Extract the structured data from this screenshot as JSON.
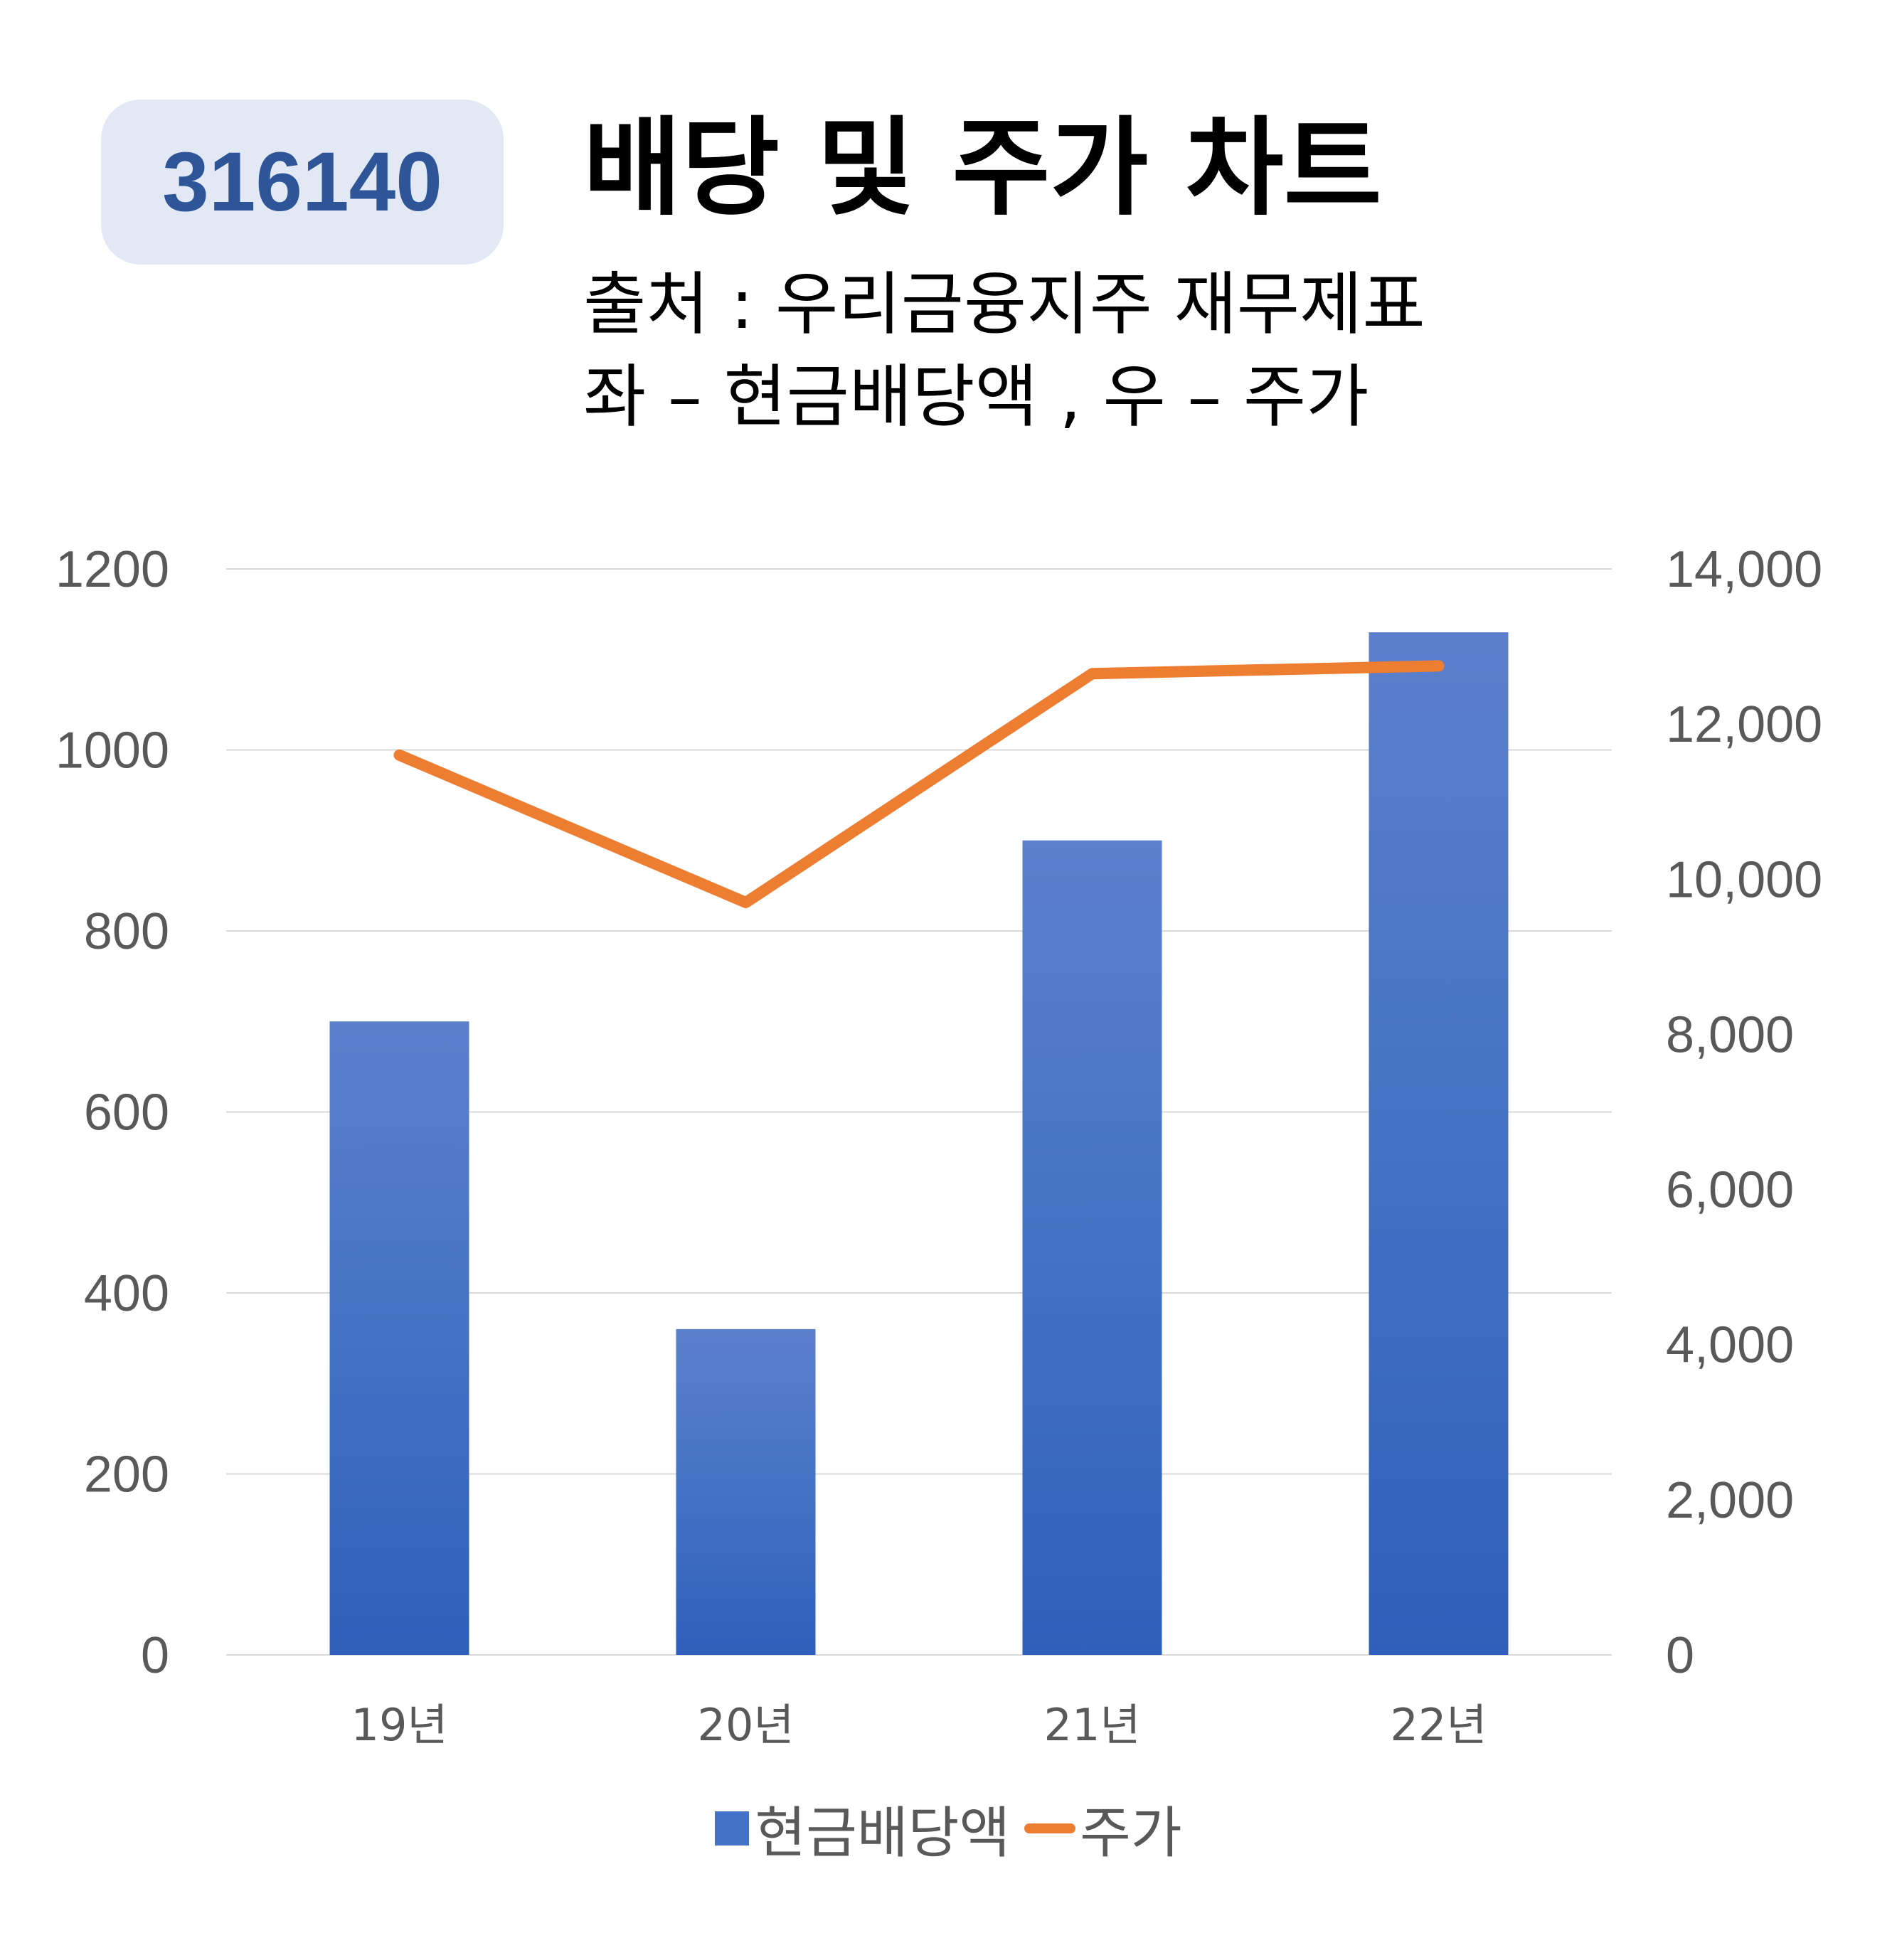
{
  "badge": "316140",
  "title": "배당 및 주가 차트",
  "subtitle_source": "출처 : 우리금융지주 재무제표",
  "subtitle_axes": "좌 – 현금배당액  ,  우 – 주가",
  "colors": {
    "bar": "#4472c4",
    "line": "#ed7d31",
    "badge_bg": "#e3e8f5",
    "badge_text": "#2d5597"
  },
  "chart_data": {
    "type": "bar",
    "categories": [
      "19년",
      "20년",
      "21년",
      "22년"
    ],
    "series": [
      {
        "name": "현금배당액",
        "type": "bar",
        "axis": "left",
        "values": [
          700,
          360,
          900,
          1130
        ]
      },
      {
        "name": "주가",
        "type": "line",
        "axis": "right",
        "values": [
          11600,
          9700,
          12650,
          12750
        ]
      }
    ],
    "y_left": {
      "min": 0,
      "max": 1200,
      "ticks": [
        "0",
        "200",
        "400",
        "600",
        "800",
        "1000",
        "1200"
      ]
    },
    "y_right": {
      "min": 0,
      "max": 14000,
      "ticks": [
        "0",
        "2,000",
        "4,000",
        "6,000",
        "8,000",
        "10,000",
        "12,000",
        "14,000"
      ]
    },
    "grid": true,
    "legend_position": "bottom"
  }
}
